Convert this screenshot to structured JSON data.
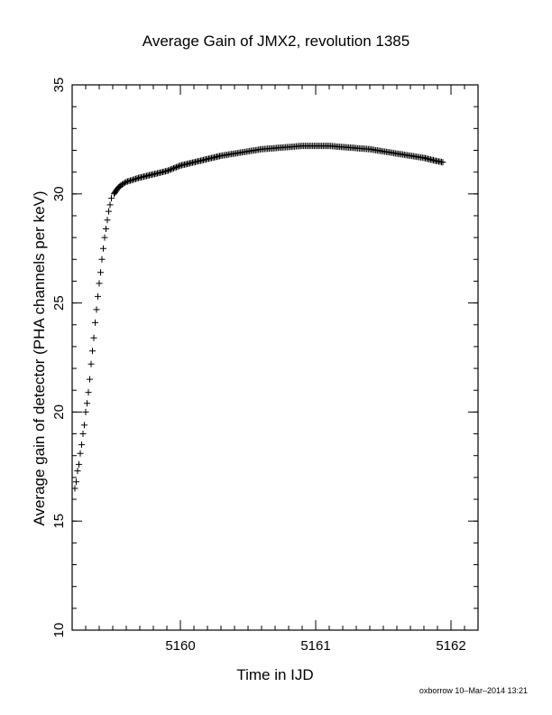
{
  "chart_data": {
    "type": "scatter",
    "title": "Average Gain of JMX2, revolution 1385",
    "xlabel": "Time in IJD",
    "ylabel": "Average gain of detector (PHA channels per keV)",
    "xlim": [
      5159.2,
      5162.2
    ],
    "ylim": [
      10,
      35
    ],
    "xticks": [
      5160,
      5161,
      5162
    ],
    "yticks": [
      10,
      15,
      20,
      25,
      30,
      35
    ],
    "x_minor_step": 0.1,
    "y_minor_step": 1,
    "marker": "plus",
    "grid": false,
    "legend": "none",
    "series_color": "#000000",
    "points": [
      [
        5159.22,
        16.5
      ],
      [
        5159.23,
        16.8
      ],
      [
        5159.24,
        17.3
      ],
      [
        5159.25,
        17.6
      ],
      [
        5159.26,
        18.1
      ],
      [
        5159.27,
        18.5
      ],
      [
        5159.28,
        19.0
      ],
      [
        5159.29,
        19.4
      ],
      [
        5159.3,
        20.0
      ],
      [
        5159.31,
        20.4
      ],
      [
        5159.32,
        20.9
      ],
      [
        5159.33,
        21.5
      ],
      [
        5159.34,
        22.2
      ],
      [
        5159.35,
        22.8
      ],
      [
        5159.36,
        23.4
      ],
      [
        5159.37,
        24.1
      ],
      [
        5159.38,
        24.7
      ],
      [
        5159.39,
        25.3
      ],
      [
        5159.4,
        25.9
      ],
      [
        5159.41,
        26.4
      ],
      [
        5159.42,
        27.0
      ],
      [
        5159.43,
        27.5
      ],
      [
        5159.44,
        28.0
      ],
      [
        5159.45,
        28.4
      ],
      [
        5159.46,
        28.8
      ],
      [
        5159.47,
        29.2
      ],
      [
        5159.48,
        29.5
      ],
      [
        5159.49,
        29.8
      ],
      [
        5159.51,
        30.0
      ],
      [
        5159.53,
        30.2
      ],
      [
        5159.56,
        30.4
      ],
      [
        5159.6,
        30.55
      ],
      [
        5159.65,
        30.65
      ],
      [
        5159.7,
        30.75
      ],
      [
        5159.8,
        30.9
      ],
      [
        5159.9,
        31.05
      ],
      [
        5160.0,
        31.3
      ],
      [
        5160.1,
        31.45
      ],
      [
        5160.2,
        31.6
      ],
      [
        5160.3,
        31.75
      ],
      [
        5160.4,
        31.85
      ],
      [
        5160.5,
        31.95
      ],
      [
        5160.6,
        32.05
      ],
      [
        5160.7,
        32.1
      ],
      [
        5160.8,
        32.15
      ],
      [
        5160.9,
        32.2
      ],
      [
        5161.0,
        32.2
      ],
      [
        5161.1,
        32.2
      ],
      [
        5161.2,
        32.15
      ],
      [
        5161.3,
        32.1
      ],
      [
        5161.4,
        32.05
      ],
      [
        5161.5,
        31.95
      ],
      [
        5161.6,
        31.85
      ],
      [
        5161.7,
        31.75
      ],
      [
        5161.8,
        31.65
      ],
      [
        5161.9,
        31.5
      ],
      [
        5161.94,
        31.45
      ]
    ]
  },
  "footer": "oxborrow 10–Mar–2014 13:21"
}
